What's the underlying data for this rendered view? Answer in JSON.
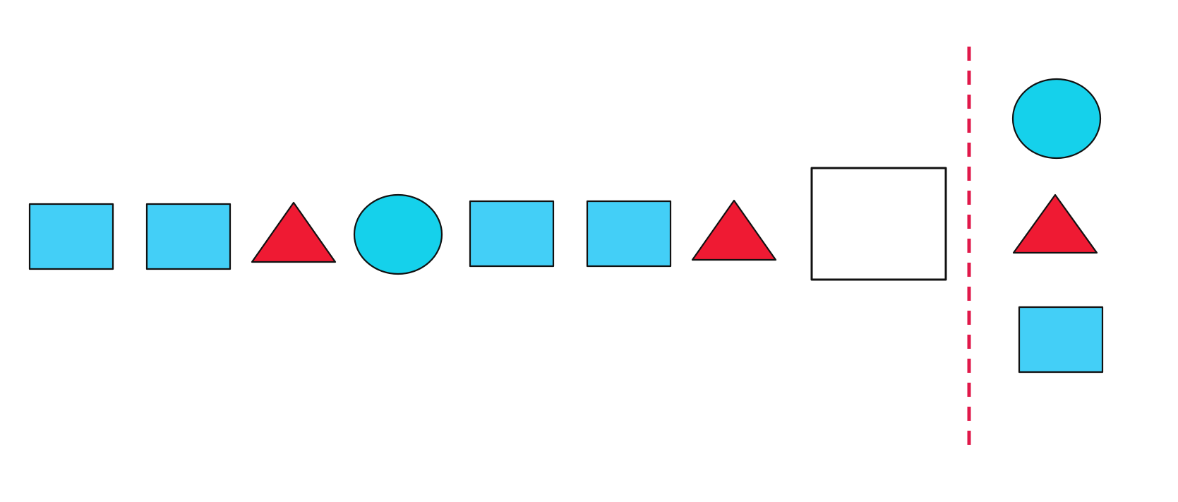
{
  "puzzle": {
    "sequence": [
      {
        "shape": "square",
        "color": "#43CFF7"
      },
      {
        "shape": "square",
        "color": "#43CFF7"
      },
      {
        "shape": "triangle",
        "color": "#EF1A33"
      },
      {
        "shape": "circle",
        "color": "#15D1EB"
      },
      {
        "shape": "square",
        "color": "#43CFF7"
      },
      {
        "shape": "square",
        "color": "#43CFF7"
      },
      {
        "shape": "triangle",
        "color": "#EF1A33"
      },
      {
        "shape": "blank",
        "color": "#FFFFFF"
      }
    ],
    "options": [
      {
        "shape": "circle",
        "color": "#15D1EB"
      },
      {
        "shape": "triangle",
        "color": "#EF1A33"
      },
      {
        "shape": "square",
        "color": "#43CFF7"
      }
    ],
    "divider_color": "#E0184A",
    "outline_color": "#111111"
  }
}
